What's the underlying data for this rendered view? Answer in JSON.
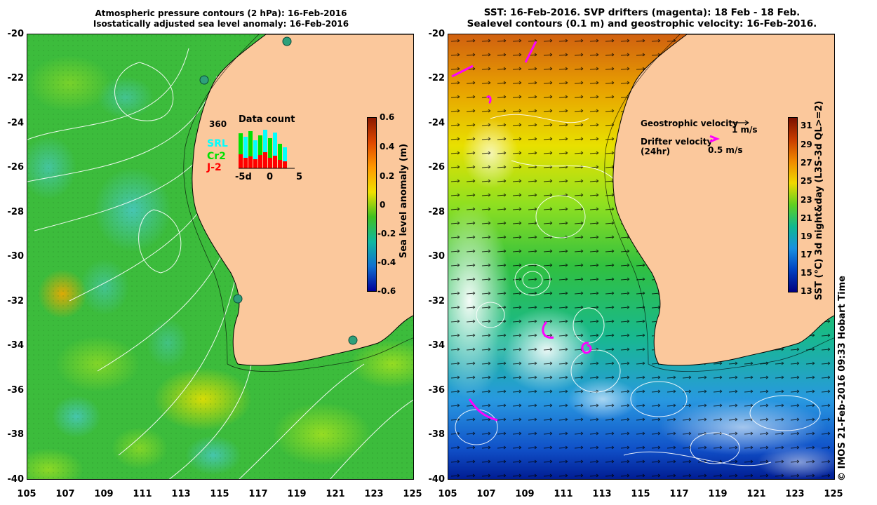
{
  "left_panel": {
    "title_line1": "Atmospheric pressure contours (2 hPa): 16-Feb-2016",
    "title_line2": "Isostatically adjusted sea level anomaly: 16-Feb-2016",
    "colorbar": {
      "title": "Sea level anomaly (m)",
      "ticks": [
        "0.6",
        "0.4",
        "0.2",
        "0",
        "-0.2",
        "-0.4",
        "-0.6"
      ],
      "colors": [
        "#8b1a00",
        "#e04800",
        "#ff9900",
        "#f0e000",
        "#40c020",
        "#10b8a0",
        "#1070d0",
        "#00009a"
      ]
    },
    "inset": {
      "title": "Data count",
      "max_label": "360",
      "x_ticks": [
        "-5d",
        "0",
        "5"
      ],
      "legend": [
        {
          "name": "SRL",
          "color": "#00ffff"
        },
        {
          "name": "Cr2",
          "color": "#00e000"
        },
        {
          "name": "J-2",
          "color": "#ff0000"
        }
      ]
    }
  },
  "right_panel": {
    "title_line1": "SST: 16-Feb-2016. SVP drifters (magenta): 18 Feb - 18 Feb.",
    "title_line2": "Sealevel contours (0.1 m) and geostrophic velocity: 16-Feb-2016.",
    "legend": {
      "geo_label": "Geostrophic velocity",
      "geo_scale": "1 m/s",
      "drifter_label": "Drifter velocity",
      "drifter_sub": "(24hr)",
      "drifter_scale": "0.5 m/s"
    },
    "colorbar": {
      "title": "SST (°C) 3d night&day (L3S-3d QL>=2)",
      "ticks": [
        "31",
        "29",
        "27",
        "25",
        "23",
        "21",
        "19",
        "17",
        "15",
        "13"
      ],
      "colors": [
        "#7a1000",
        "#c83c00",
        "#f08a00",
        "#f0d800",
        "#60d020",
        "#10b890",
        "#1890e0",
        "#0040c0",
        "#000080"
      ]
    }
  },
  "axes": {
    "y_labels": [
      "-20",
      "-22",
      "-24",
      "-26",
      "-28",
      "-30",
      "-32",
      "-34",
      "-36",
      "-38",
      "-40"
    ],
    "x_labels": [
      "105",
      "107",
      "109",
      "111",
      "113",
      "115",
      "117",
      "119",
      "121",
      "123",
      "125"
    ]
  },
  "stamp": "© IMOS 21-Feb-2016 09:33 Hobart Time",
  "colors": {
    "land": "#fbc89c",
    "coast": "#000000",
    "contour": "#ffffff",
    "drifter": "#ff00ff"
  }
}
